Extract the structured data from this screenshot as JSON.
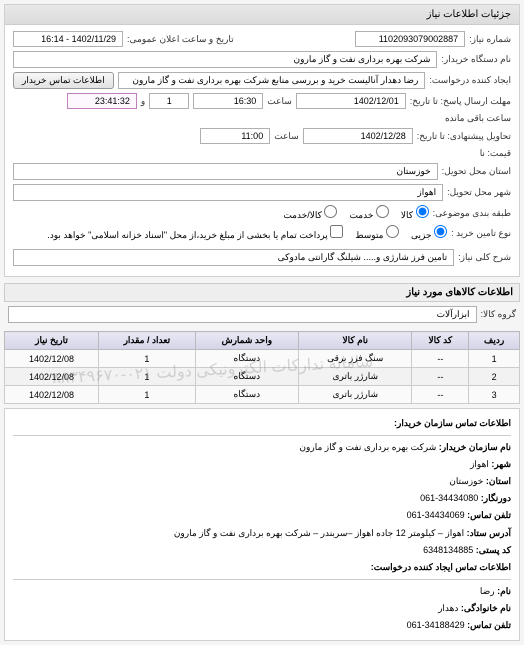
{
  "panel_title": "جزئیات اطلاعات نیاز",
  "header": {
    "labels": {
      "need_no": "شماره نیاز:",
      "public_datetime": "تاریخ و ساعت اعلان عمومی:",
      "buyer_org": "نام دستگاه خریدار:",
      "requester": "ایجاد کننده درخواست:",
      "reply_deadline": "مهلت ارسال پاسخ: تا تاریخ:",
      "time": "ساعت",
      "day": "و",
      "remaining": "ساعت باقی مانده",
      "tx_deadline": "تحاویل پیشنهادی: تا تاریخ:",
      "no_price": "قیمت: نا",
      "delivery_prov": "استان محل تحویل:",
      "delivery_city": "شهر محل تحویل:",
      "budget_type": "طبقه بندی موضوعی:",
      "purchase_type": "نوع تامین خرید :",
      "need_short": "شرح کلی نیاز:"
    },
    "buyer_contact_btn": "اطلاعات تماس خریدار",
    "need_no": "1102093079002887",
    "public_datetime": "1402/11/29 - 16:14",
    "buyer_org": "شرکت بهره برداری نفت و گاز مارون",
    "requester": "رضا دهدار آنالیست خرید و بررسی منابع شرکت بهره برداری نفت و گاز مارون",
    "reply_deadline_date": "1402/12/01",
    "reply_deadline_time": "16:30",
    "days_left": "1",
    "time_left": "23:41:32",
    "tx_deadline_date": "1402/12/28",
    "tx_deadline_time": "11:00",
    "delivery_prov": "خوزستان",
    "delivery_city": "اهواز",
    "budget_opts": {
      "goods": "کالا",
      "service": "خدمت",
      "goods_service": "کالا/خدمت"
    },
    "purchase_opts": {
      "partial": "جزیی",
      "mid": "متوسط"
    },
    "purchase_note": "پرداخت تمام یا بخشی از مبلغ خرید،از محل \"اسناد خزانه اسلامی\" خواهد بود.",
    "need_short": "تامین فرز شارژی و..... شیلنگ گارانتی مادوکی"
  },
  "goods": {
    "section_title": "اطلاعات کالاهای مورد نیاز",
    "group_label": "گروه کالا:",
    "group_value": "ابزارآلات",
    "columns": [
      "ردیف",
      "کد کالا",
      "نام کالا",
      "واحد شمارش",
      "تعداد / مقدار",
      "تاریخ نیاز"
    ],
    "rows": [
      [
        "1",
        "--",
        "سنگ فرز برقی",
        "دستگاه",
        "1",
        "1402/12/08"
      ],
      [
        "2",
        "--",
        "شارژر باتری",
        "دستگاه",
        "1",
        "1402/12/08"
      ],
      [
        "3",
        "--",
        "شارژر باتری",
        "دستگاه",
        "1",
        "1402/12/08"
      ]
    ],
    "watermark": "سامانه تدارکات الکترونیکی دولت    ۰۲۱-۸۸۳۴۹۶۷۰"
  },
  "contact": {
    "section_title": "اطلاعات تماس سازمان خریدار:",
    "labels": {
      "org": "نام سازمان خریدار:",
      "city": "شهر:",
      "prov": "استان:",
      "fax": "دورنگار:",
      "phone": "تلفن تماس:",
      "addr": "آدرس ستاد:",
      "postal": "کد پستی:",
      "req_section": "اطلاعات تماس ایجاد کننده درخواست:",
      "name": "نام:",
      "lname": "نام خانوادگی:",
      "phone2": "تلفن تماس:"
    },
    "org": "شرکت بهره برداری نفت و گاز مارون",
    "city": "اهواز",
    "prov": "خوزستان",
    "fax": "34434080-061",
    "phone": "34434069-061",
    "addr": "اهواز – کیلومتر 12 جاده اهواز –سربندر – شرکت بهره برداری نفت و گاز مارون",
    "postal": "6348134885",
    "name": "رضا",
    "lname": "دهدار",
    "phone2": "34188429-061"
  }
}
